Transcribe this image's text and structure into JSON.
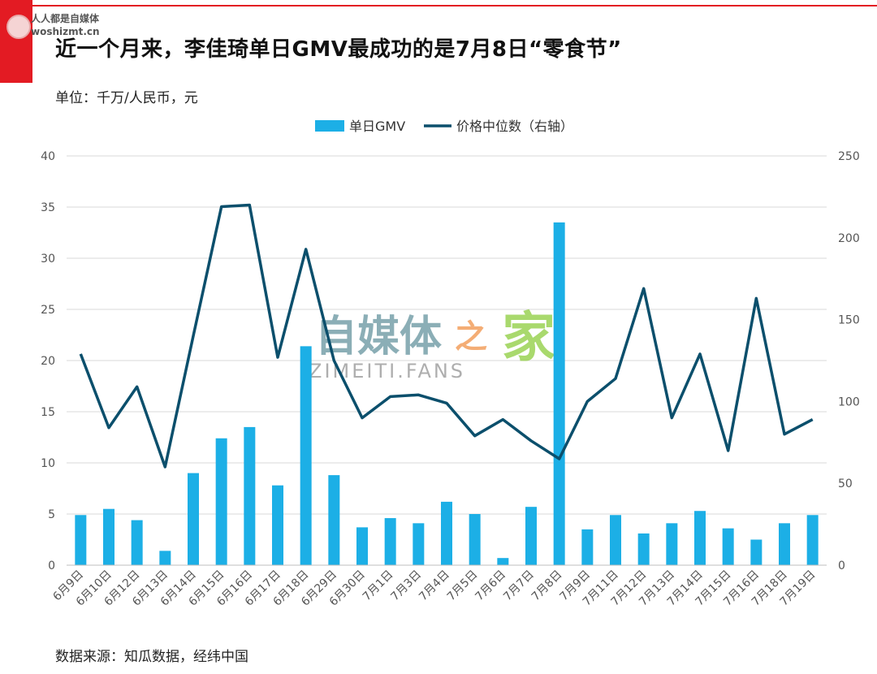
{
  "header": {
    "logo_line1": "人人都是自媒体",
    "logo_line2": "woshizmt.cn",
    "title": "近一个月来，李佳琦单日GMV最成功的是7月8日“零食节”",
    "unit": "单位：千万/人民币，元"
  },
  "footer": {
    "source": "数据来源：知瓜数据，经纬中国"
  },
  "watermark": {
    "cn_main": "自媒体",
    "cn_mid": "之",
    "cn_end": "家",
    "en": "ZIMEITI.FANS"
  },
  "colors": {
    "bar": "#1cafe6",
    "line": "#0b4f6c",
    "accent_red": "#e31b23",
    "grid": "#d9d9d9"
  },
  "chart_data": {
    "type": "bar+line",
    "categories": [
      "6月9日",
      "6月10日",
      "6月12日",
      "6月13日",
      "6月14日",
      "6月15日",
      "6月16日",
      "6月17日",
      "6月18日",
      "6月29日",
      "6月30日",
      "7月1日",
      "7月3日",
      "7月4日",
      "7月5日",
      "7月6日",
      "7月7日",
      "7月8日",
      "7月9日",
      "7月11日",
      "7月12日",
      "7月13日",
      "7月14日",
      "7月15日",
      "7月16日",
      "7月18日",
      "7月19日"
    ],
    "series": [
      {
        "name": "单日GMV",
        "type": "bar",
        "axis": "left",
        "values": [
          4.9,
          5.5,
          4.4,
          1.4,
          9.0,
          12.4,
          13.5,
          7.8,
          21.4,
          8.8,
          3.7,
          4.6,
          4.1,
          6.2,
          5.0,
          0.7,
          5.7,
          33.5,
          3.5,
          4.9,
          3.1,
          4.1,
          5.3,
          3.6,
          2.5,
          4.1,
          4.9
        ]
      },
      {
        "name": "价格中位数（右轴）",
        "type": "line",
        "axis": "right",
        "values": [
          129,
          84,
          109,
          60,
          140,
          219,
          220,
          127,
          193,
          125,
          90,
          103,
          104,
          99,
          79,
          89,
          76,
          65,
          100,
          114,
          169,
          90,
          129,
          70,
          163,
          80,
          89
        ]
      }
    ],
    "left_axis": {
      "min": 0,
      "max": 40,
      "ticks": [
        0,
        5,
        10,
        15,
        20,
        25,
        30,
        35,
        40
      ]
    },
    "right_axis": {
      "min": 0,
      "max": 250,
      "ticks": [
        0,
        50,
        100,
        150,
        200,
        250
      ]
    },
    "grid": true,
    "legend_position": "top-center"
  }
}
